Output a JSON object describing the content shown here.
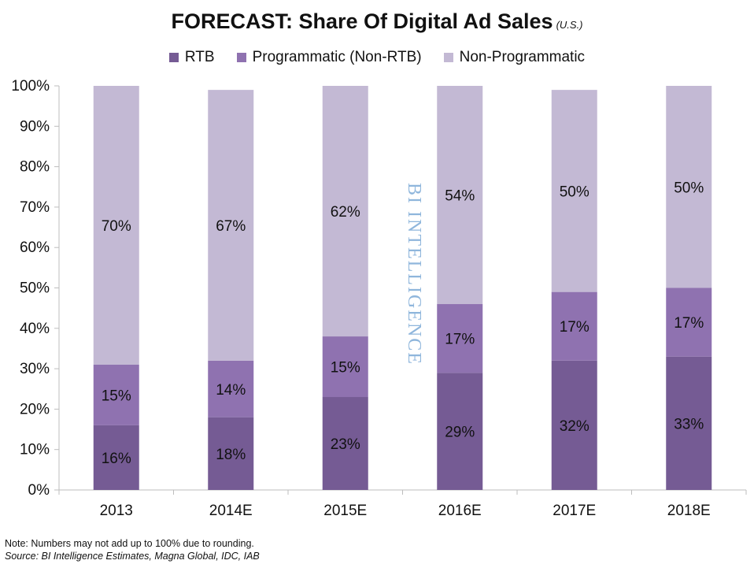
{
  "header": {
    "title": "FORECAST: Share Of Digital Ad Sales",
    "subtitle": "(U.S.)"
  },
  "watermark": "BI INTELLIGENCE",
  "footer": {
    "note": "Note: Numbers may not add up to 100% due to rounding.",
    "source": "Source: BI Intelligence Estimates, Magna Global, IDC, IAB"
  },
  "chart_data": {
    "type": "bar",
    "stacked": true,
    "title": "FORECAST: Share Of Digital Ad Sales",
    "subtitle": "(U.S.)",
    "categories": [
      "2013",
      "2014E",
      "2015E",
      "2016E",
      "2017E",
      "2018E"
    ],
    "series": [
      {
        "name": "RTB",
        "color": "#755b94",
        "values": [
          16,
          18,
          23,
          29,
          32,
          33
        ],
        "labels": [
          "16%",
          "18%",
          "23%",
          "29%",
          "32%",
          "33%"
        ]
      },
      {
        "name": "Programmatic (Non-RTB)",
        "color": "#8f72b0",
        "values": [
          15,
          14,
          15,
          17,
          17,
          17
        ],
        "labels": [
          "15%",
          "14%",
          "15%",
          "17%",
          "17%",
          "17%"
        ]
      },
      {
        "name": "Non-Programmatic",
        "color": "#c3b9d4",
        "values": [
          70,
          67,
          62,
          54,
          50,
          50
        ],
        "labels": [
          "70%",
          "67%",
          "62%",
          "54%",
          "50%",
          "50%"
        ]
      }
    ],
    "ylim": [
      0,
      100
    ],
    "yticks": [
      "0%",
      "10%",
      "20%",
      "30%",
      "40%",
      "50%",
      "60%",
      "70%",
      "80%",
      "90%",
      "100%"
    ],
    "legend_position": "top",
    "grid": false
  }
}
